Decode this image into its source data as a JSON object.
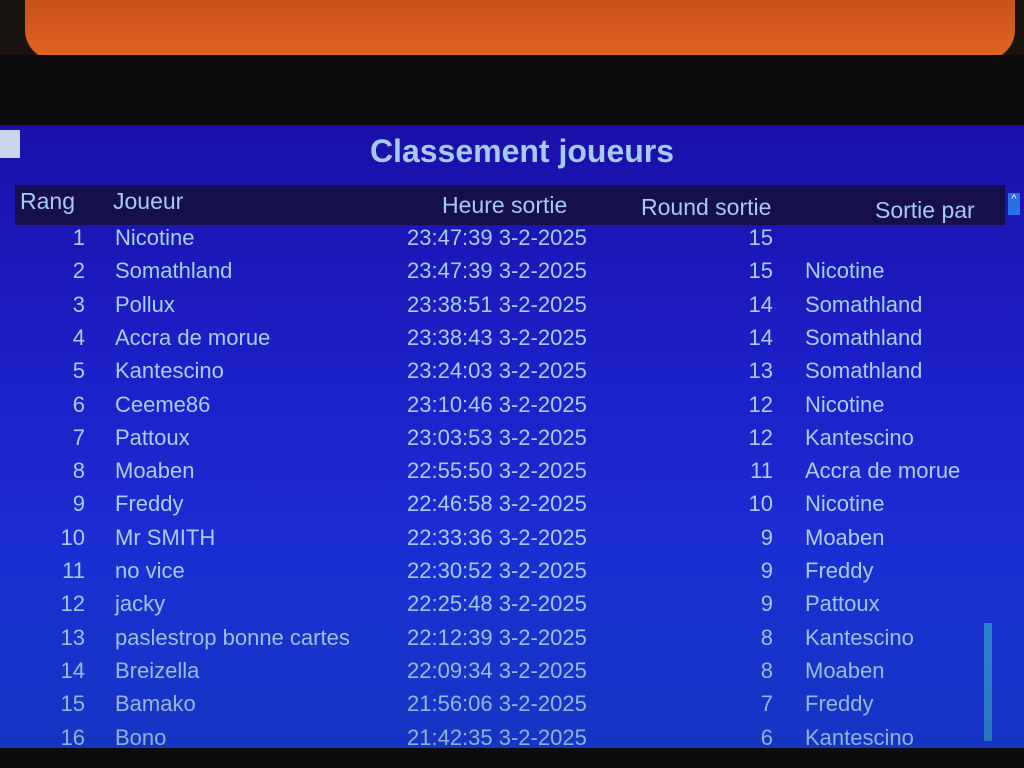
{
  "window": {
    "title": "Classement joueurs"
  },
  "table": {
    "headers": {
      "rank": "Rang",
      "player": "Joueur",
      "time": "Heure sortie",
      "round": "Round sortie",
      "by": "Sortie par"
    },
    "rows": [
      {
        "rank": "1",
        "player": "Nicotine",
        "time": "23:47:39 3-2-2025",
        "round": "15",
        "by": ""
      },
      {
        "rank": "2",
        "player": "Somathland",
        "time": "23:47:39 3-2-2025",
        "round": "15",
        "by": "Nicotine"
      },
      {
        "rank": "3",
        "player": "Pollux",
        "time": "23:38:51 3-2-2025",
        "round": "14",
        "by": "Somathland"
      },
      {
        "rank": "4",
        "player": "Accra de morue",
        "time": "23:38:43 3-2-2025",
        "round": "14",
        "by": "Somathland"
      },
      {
        "rank": "5",
        "player": "Kantescino",
        "time": "23:24:03 3-2-2025",
        "round": "13",
        "by": "Somathland"
      },
      {
        "rank": "6",
        "player": "Ceeme86",
        "time": "23:10:46 3-2-2025",
        "round": "12",
        "by": "Nicotine"
      },
      {
        "rank": "7",
        "player": "Pattoux",
        "time": "23:03:53 3-2-2025",
        "round": "12",
        "by": "Kantescino"
      },
      {
        "rank": "8",
        "player": "Moaben",
        "time": "22:55:50 3-2-2025",
        "round": "11",
        "by": "Accra de morue"
      },
      {
        "rank": "9",
        "player": "Freddy",
        "time": "22:46:58 3-2-2025",
        "round": "10",
        "by": "Nicotine"
      },
      {
        "rank": "10",
        "player": "Mr SMITH",
        "time": "22:33:36 3-2-2025",
        "round": "9",
        "by": "Moaben"
      },
      {
        "rank": "11",
        "player": "no vice",
        "time": "22:30:52 3-2-2025",
        "round": "9",
        "by": "Freddy"
      },
      {
        "rank": "12",
        "player": "jacky",
        "time": "22:25:48 3-2-2025",
        "round": "9",
        "by": "Pattoux"
      },
      {
        "rank": "13",
        "player": "paslestrop bonne cartes",
        "time": "22:12:39 3-2-2025",
        "round": "8",
        "by": "Kantescino"
      },
      {
        "rank": "14",
        "player": "Breizella",
        "time": "22:09:34 3-2-2025",
        "round": "8",
        "by": "Moaben"
      },
      {
        "rank": "15",
        "player": "Bamako",
        "time": "21:56:06 3-2-2025",
        "round": "7",
        "by": "Freddy"
      },
      {
        "rank": "16",
        "player": "Bono",
        "time": "21:42:35 3-2-2025",
        "round": "6",
        "by": "Kantescino"
      }
    ]
  },
  "icons": {
    "scroll_up": "chevron-up-icon",
    "scroll_down": "chevron-down-icon",
    "system_menu": "window-menu-icon"
  },
  "colors": {
    "background": "#1c20c8",
    "text": "#a9cdf5",
    "header_band": "#16104a"
  }
}
